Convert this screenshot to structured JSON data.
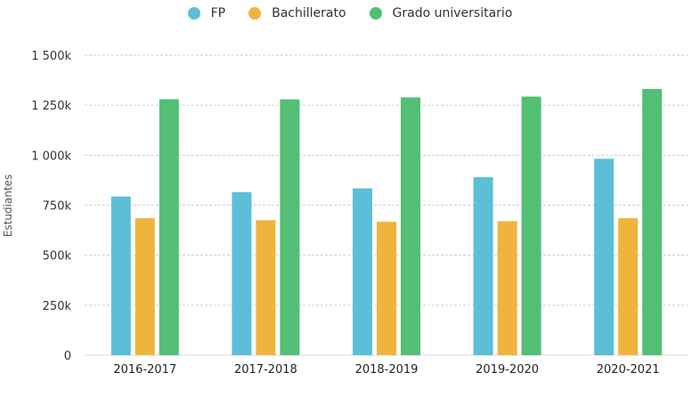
{
  "chart_data": {
    "type": "bar",
    "title": "",
    "xlabel": "",
    "ylabel": "Estudiantes",
    "categories": [
      "2016-2017",
      "2017-2018",
      "2018-2019",
      "2019-2020",
      "2020-2021"
    ],
    "series": [
      {
        "name": "FP",
        "color": "#5bbfd8",
        "values": [
          793000,
          815000,
          834000,
          890000,
          982000
        ]
      },
      {
        "name": "Bachillerato",
        "color": "#f0b33c",
        "values": [
          685000,
          675000,
          667000,
          670000,
          685000
        ]
      },
      {
        "name": "Grado universitario",
        "color": "#52bf74",
        "values": [
          1280000,
          1279000,
          1289000,
          1293000,
          1331000
        ]
      }
    ],
    "ylim": [
      0,
      1500000
    ],
    "yticks": [
      {
        "value": 0,
        "label": "0"
      },
      {
        "value": 250000,
        "label": "250k"
      },
      {
        "value": 500000,
        "label": "500k"
      },
      {
        "value": 750000,
        "label": "750k"
      },
      {
        "value": 1000000,
        "label": "1 000k"
      },
      {
        "value": 1250000,
        "label": "1 250k"
      },
      {
        "value": 1500000,
        "label": "1 500k"
      }
    ],
    "grid": true,
    "legend_position": "top-center"
  }
}
